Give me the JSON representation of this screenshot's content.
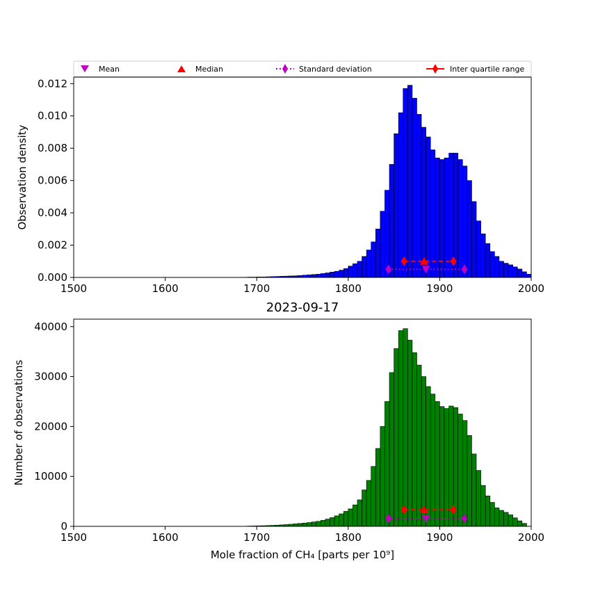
{
  "chart_data": [
    {
      "type": "bar",
      "id": "density",
      "title": "",
      "xlabel": "",
      "ylabel": "Observation density",
      "xlim": [
        1500,
        2000
      ],
      "ylim": [
        0,
        0.0124
      ],
      "xticks": [
        1500,
        1600,
        1700,
        1800,
        1900,
        2000
      ],
      "xtick_labels": [
        "1500",
        "1600",
        "1700",
        "1800",
        "1900",
        "2000"
      ],
      "yticks": [
        0,
        0.002,
        0.004,
        0.006,
        0.008,
        0.01,
        0.012
      ],
      "ytick_labels": [
        "0.000",
        "0.002",
        "0.004",
        "0.006",
        "0.008",
        "0.010",
        "0.012"
      ],
      "bar_color": "#0000ff",
      "bin_start": 1680,
      "bin_width": 5,
      "values": [
        1e-05,
        1e-05,
        2e-05,
        2e-05,
        3e-05,
        3e-05,
        4e-05,
        5e-05,
        6e-05,
        7e-05,
        8e-05,
        9e-05,
        0.0001,
        0.00012,
        0.00014,
        0.00016,
        0.00018,
        0.0002,
        0.00024,
        0.00028,
        0.00033,
        0.00038,
        0.00045,
        0.00055,
        0.0007,
        0.00085,
        0.001,
        0.0013,
        0.0017,
        0.0022,
        0.003,
        0.0041,
        0.0054,
        0.007,
        0.0089,
        0.0102,
        0.0117,
        0.0119,
        0.0111,
        0.0101,
        0.0093,
        0.0087,
        0.0079,
        0.0074,
        0.0073,
        0.0074,
        0.0077,
        0.0077,
        0.0073,
        0.0069,
        0.006,
        0.0047,
        0.0035,
        0.0027,
        0.0021,
        0.0016,
        0.0013,
        0.001,
        0.00088,
        0.00078,
        0.00065,
        0.00052,
        0.00035,
        0.0002
      ],
      "markers": {
        "mean": {
          "x": 1885,
          "y": 0.0005,
          "color": "#bf00bf"
        },
        "median": {
          "x": 1883,
          "y": 0.001,
          "color": "#ff0000"
        },
        "std": {
          "x": [
            1844,
            1927
          ],
          "y": 0.0005,
          "color": "#bf00bf"
        },
        "iqr": {
          "x": [
            1861,
            1915
          ],
          "y": 0.001,
          "color": "#ff0000"
        }
      }
    },
    {
      "type": "bar",
      "id": "count",
      "title": "2023-09-17",
      "xlabel": "Mole fraction of CH₄ [parts per 10⁹]",
      "ylabel": "Number of observations",
      "xlim": [
        1500,
        2000
      ],
      "ylim": [
        0,
        41500
      ],
      "xticks": [
        1500,
        1600,
        1700,
        1800,
        1900,
        2000
      ],
      "xtick_labels": [
        "1500",
        "1600",
        "1700",
        "1800",
        "1900",
        "2000"
      ],
      "yticks": [
        0,
        10000,
        20000,
        30000,
        40000
      ],
      "ytick_labels": [
        "0",
        "10000",
        "20000",
        "30000",
        "40000"
      ],
      "bar_color": "#008000",
      "bin_start": 1690,
      "bin_width": 5,
      "values": [
        60,
        80,
        100,
        130,
        160,
        200,
        240,
        290,
        350,
        420,
        500,
        580,
        660,
        760,
        880,
        1000,
        1200,
        1450,
        1750,
        2100,
        2500,
        3000,
        3500,
        4300,
        5300,
        7300,
        9200,
        12000,
        15600,
        20000,
        25000,
        30800,
        35600,
        39200,
        39600,
        37300,
        34800,
        32300,
        30000,
        28000,
        26500,
        25000,
        24000,
        23600,
        24100,
        23800,
        22500,
        21200,
        18200,
        14500,
        11200,
        8200,
        6100,
        4800,
        3700,
        3200,
        2800,
        2300,
        1700,
        1100,
        600
      ],
      "markers": {
        "mean": {
          "x": 1885,
          "y": 1550,
          "color": "#bf00bf"
        },
        "median": {
          "x": 1883,
          "y": 3300,
          "color": "#ff0000"
        },
        "std": {
          "x": [
            1844,
            1927
          ],
          "y": 1550,
          "color": "#bf00bf"
        },
        "iqr": {
          "x": [
            1861,
            1915
          ],
          "y": 3300,
          "color": "#ff0000"
        }
      }
    }
  ],
  "legend": {
    "placement": "top",
    "items": [
      {
        "label": "Mean",
        "marker": "triangle-down",
        "color": "#bf00bf"
      },
      {
        "label": "Median",
        "marker": "triangle-up",
        "color": "#ff0000"
      },
      {
        "label": "Standard deviation",
        "marker": "diamond-dotted-line",
        "color": "#bf00bf"
      },
      {
        "label": "Inter quartile range",
        "marker": "diamond-solid-line",
        "color": "#ff0000"
      }
    ]
  }
}
